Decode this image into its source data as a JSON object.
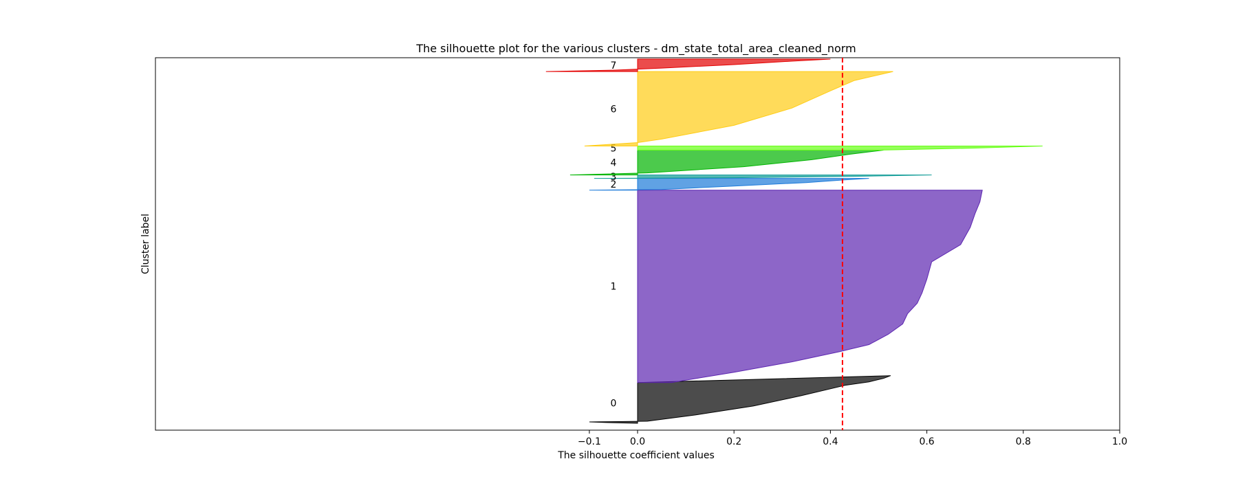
{
  "chart_data": {
    "type": "area",
    "title": "The silhouette plot for the various clusters - dm_state_total_area_cleaned_norm",
    "xlabel": "The silhouette coefficient values",
    "ylabel": "Cluster label",
    "xlim": [
      -1.0,
      1.0
    ],
    "x_ticks": [
      "−0.1",
      "0.0",
      "0.2",
      "0.4",
      "0.6",
      "0.8",
      "1.0"
    ],
    "x_tick_values": [
      -0.1,
      0.0,
      0.2,
      0.4,
      0.6,
      0.8,
      1.0
    ],
    "ylim": [
      0,
      540
    ],
    "average_silhouette": 0.425,
    "average_line_color": "#ff0000",
    "clusters": [
      {
        "label": "0",
        "color": "#000000",
        "y_start": 10,
        "y_end": 69,
        "profile": [
          [
            0,
            0.0
          ],
          [
            1,
            -0.06
          ],
          [
            2,
            -0.1
          ],
          [
            3,
            0.02
          ],
          [
            12,
            0.12
          ],
          [
            25,
            0.24
          ],
          [
            40,
            0.34
          ],
          [
            50,
            0.4
          ],
          [
            55,
            0.43
          ],
          [
            60,
            0.48
          ],
          [
            65,
            0.51
          ],
          [
            69,
            0.525
          ]
        ]
      },
      {
        "label": "1",
        "color": "#5c25b0",
        "y_start": 69,
        "y_end": 348,
        "profile": [
          [
            0,
            0.07
          ],
          [
            15,
            0.2
          ],
          [
            30,
            0.32
          ],
          [
            45,
            0.42
          ],
          [
            55,
            0.48
          ],
          [
            70,
            0.52
          ],
          [
            85,
            0.55
          ],
          [
            100,
            0.56
          ],
          [
            115,
            0.58
          ],
          [
            130,
            0.59
          ],
          [
            150,
            0.6
          ],
          [
            175,
            0.61
          ],
          [
            200,
            0.67
          ],
          [
            225,
            0.69
          ],
          [
            245,
            0.7
          ],
          [
            262,
            0.71
          ],
          [
            279,
            0.715
          ]
        ]
      },
      {
        "label": "2",
        "color": "#1d7ad9",
        "y_start": 348,
        "y_end": 365,
        "profile": [
          [
            0,
            -0.1
          ],
          [
            1,
            0.05
          ],
          [
            6,
            0.2
          ],
          [
            11,
            0.35
          ],
          [
            15,
            0.43
          ],
          [
            17,
            0.48
          ]
        ]
      },
      {
        "label": "3",
        "color": "#0e9b96",
        "y_start": 365,
        "y_end": 370,
        "profile": [
          [
            0,
            -0.09
          ],
          [
            1,
            0.2
          ],
          [
            3,
            0.45
          ],
          [
            5,
            0.61
          ]
        ]
      },
      {
        "label": "4",
        "color": "#00b400",
        "y_start": 370,
        "y_end": 406,
        "profile": [
          [
            0,
            -0.14
          ],
          [
            3,
            0.02
          ],
          [
            12,
            0.22
          ],
          [
            22,
            0.36
          ],
          [
            30,
            0.44
          ],
          [
            36,
            0.51
          ]
        ]
      },
      {
        "label": "5",
        "color": "#66ff14",
        "y_start": 406,
        "y_end": 412,
        "profile": [
          [
            0,
            0.5
          ],
          [
            3,
            0.7
          ],
          [
            6,
            0.84
          ]
        ]
      },
      {
        "label": "6",
        "color": "#ffcc14",
        "y_start": 412,
        "y_end": 520,
        "profile": [
          [
            0,
            -0.11
          ],
          [
            5,
            0.0
          ],
          [
            10,
            0.05
          ],
          [
            30,
            0.2
          ],
          [
            55,
            0.32
          ],
          [
            80,
            0.4
          ],
          [
            95,
            0.45
          ],
          [
            108,
            0.53
          ]
        ]
      },
      {
        "label": "7",
        "color": "#e30000",
        "y_start": 520,
        "y_end": 538,
        "profile": [
          [
            0,
            -0.19
          ],
          [
            2,
            -0.05
          ],
          [
            5,
            0.05
          ],
          [
            10,
            0.2
          ],
          [
            15,
            0.32
          ],
          [
            18,
            0.4
          ]
        ]
      }
    ],
    "grid": false,
    "legend": "none"
  }
}
